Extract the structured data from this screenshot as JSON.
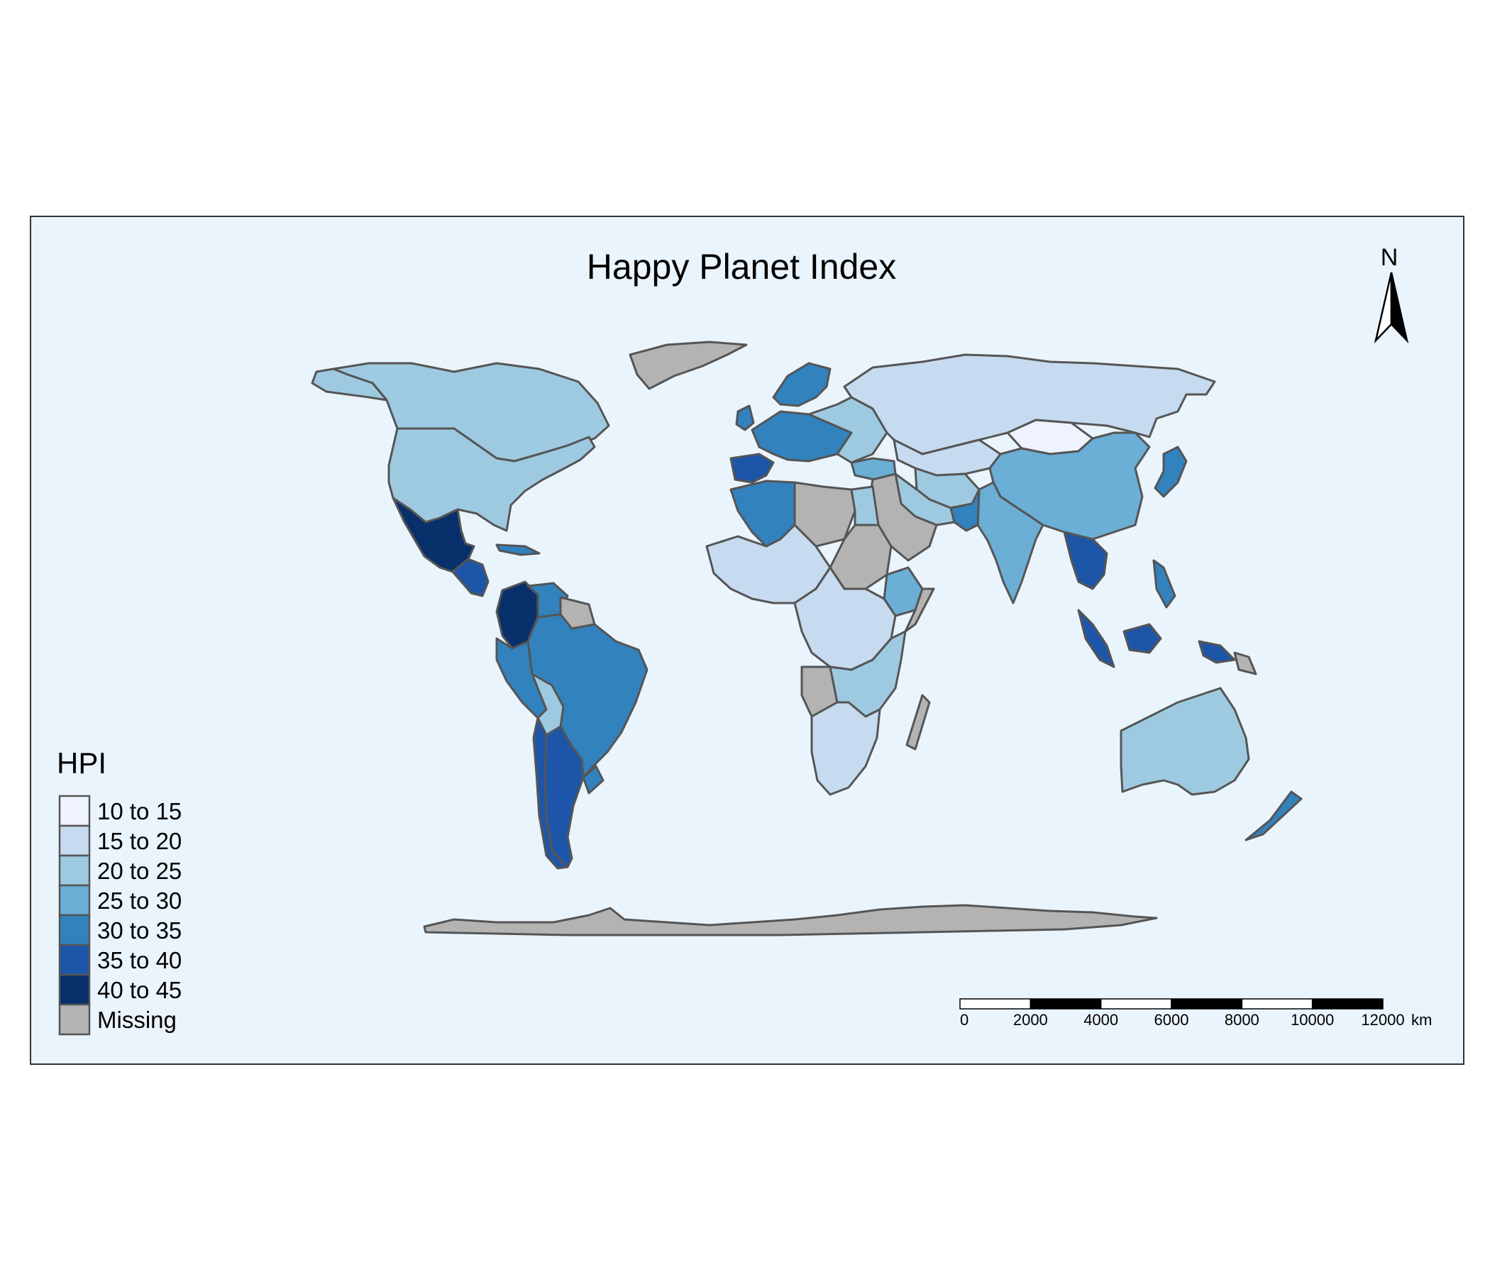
{
  "title": "Happy Planet Index",
  "north_arrow": {
    "label": "N"
  },
  "legend": {
    "title": "HPI",
    "items": [
      {
        "label": "10 to 15",
        "color": "#eff3ff"
      },
      {
        "label": "15 to 20",
        "color": "#c6dbef"
      },
      {
        "label": "20 to 25",
        "color": "#9ecae1"
      },
      {
        "label": "25 to 30",
        "color": "#6baed6"
      },
      {
        "label": "30 to 35",
        "color": "#3182bd"
      },
      {
        "label": "35 to 40",
        "color": "#1d56a8"
      },
      {
        "label": "40 to 45",
        "color": "#08306b"
      },
      {
        "label": "Missing",
        "color": "#b3b3b3"
      }
    ]
  },
  "scale_bar": {
    "ticks": [
      "0",
      "2000",
      "4000",
      "6000",
      "8000",
      "10000",
      "12000"
    ],
    "unit": "km"
  },
  "colors": {
    "ocean": "#eaf4fd",
    "panel_border": "#333333",
    "country_border": "#555555"
  }
}
